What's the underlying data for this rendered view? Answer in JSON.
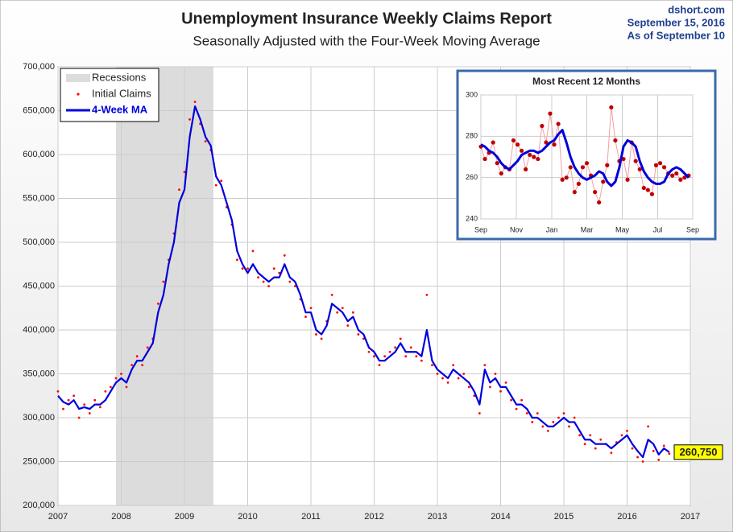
{
  "chart_data": [
    {
      "type": "line",
      "title": "Unemployment Insurance Weekly Claims Report",
      "subtitle": "Seasonally Adjusted with the Four-Week Moving Average",
      "source": [
        "dshort.com",
        "September 15, 2016",
        "As of September 10"
      ],
      "xlim": [
        2007,
        2017
      ],
      "xticks": [
        2007,
        2008,
        2009,
        2010,
        2011,
        2012,
        2013,
        2014,
        2015,
        2016,
        2017
      ],
      "ylim": [
        200000,
        700000
      ],
      "yticks": [
        {
          "value": 200000,
          "label": "200,000"
        },
        {
          "value": 250000,
          "label": "250,000"
        },
        {
          "value": 300000,
          "label": "300,000"
        },
        {
          "value": 350000,
          "label": "350,000"
        },
        {
          "value": 400000,
          "label": "400,000"
        },
        {
          "value": 450000,
          "label": "450,000"
        },
        {
          "value": 500000,
          "label": "500,000"
        },
        {
          "value": 550000,
          "label": "550,000"
        },
        {
          "value": 600000,
          "label": "600,000"
        },
        {
          "value": 650000,
          "label": "650,000"
        },
        {
          "value": 700000,
          "label": "700,000"
        }
      ],
      "grid": true,
      "shaded": {
        "name": "Recessions",
        "color": "#dcdcdc",
        "start": 2007.917,
        "end": 2009.458
      },
      "x": [
        2007,
        2007.083,
        2007.167,
        2007.25,
        2007.333,
        2007.417,
        2007.5,
        2007.583,
        2007.667,
        2007.75,
        2007.833,
        2007.917,
        2008,
        2008.083,
        2008.167,
        2008.25,
        2008.333,
        2008.417,
        2008.5,
        2008.583,
        2008.667,
        2008.75,
        2008.833,
        2008.917,
        2009,
        2009.083,
        2009.167,
        2009.25,
        2009.333,
        2009.417,
        2009.5,
        2009.583,
        2009.667,
        2009.75,
        2009.833,
        2009.917,
        2010,
        2010.083,
        2010.167,
        2010.25,
        2010.333,
        2010.417,
        2010.5,
        2010.583,
        2010.667,
        2010.75,
        2010.833,
        2010.917,
        2011,
        2011.083,
        2011.167,
        2011.25,
        2011.333,
        2011.417,
        2011.5,
        2011.583,
        2011.667,
        2011.75,
        2011.833,
        2011.917,
        2012,
        2012.083,
        2012.167,
        2012.25,
        2012.333,
        2012.417,
        2012.5,
        2012.583,
        2012.667,
        2012.75,
        2012.833,
        2012.917,
        2013,
        2013.083,
        2013.167,
        2013.25,
        2013.333,
        2013.417,
        2013.5,
        2013.583,
        2013.667,
        2013.75,
        2013.833,
        2013.917,
        2014,
        2014.083,
        2014.167,
        2014.25,
        2014.333,
        2014.417,
        2014.5,
        2014.583,
        2014.667,
        2014.75,
        2014.833,
        2014.917,
        2015,
        2015.083,
        2015.167,
        2015.25,
        2015.333,
        2015.417,
        2015.5,
        2015.583,
        2015.667,
        2015.75,
        2015.833,
        2015.917,
        2016,
        2016.083,
        2016.167,
        2016.25,
        2016.333,
        2016.417,
        2016.5,
        2016.583,
        2016.667
      ],
      "series": [
        {
          "name": "Initial Claims",
          "color": "#ff0000",
          "mark": "dot",
          "values": [
            330000,
            310000,
            320000,
            325000,
            300000,
            315000,
            305000,
            320000,
            312000,
            330000,
            335000,
            345000,
            350000,
            335000,
            360000,
            370000,
            360000,
            380000,
            390000,
            430000,
            455000,
            480000,
            510000,
            560000,
            580000,
            640000,
            660000,
            635000,
            615000,
            605000,
            565000,
            570000,
            540000,
            520000,
            480000,
            470000,
            470000,
            490000,
            460000,
            455000,
            450000,
            470000,
            465000,
            485000,
            455000,
            450000,
            435000,
            415000,
            425000,
            395000,
            390000,
            410000,
            440000,
            420000,
            425000,
            405000,
            420000,
            395000,
            390000,
            375000,
            370000,
            360000,
            370000,
            375000,
            380000,
            390000,
            370000,
            380000,
            370000,
            365000,
            440000,
            360000,
            350000,
            345000,
            340000,
            360000,
            345000,
            350000,
            335000,
            325000,
            305000,
            360000,
            335000,
            350000,
            330000,
            340000,
            320000,
            310000,
            320000,
            305000,
            295000,
            305000,
            290000,
            285000,
            295000,
            300000,
            305000,
            290000,
            300000,
            280000,
            270000,
            280000,
            265000,
            275000,
            270000,
            260000,
            272000,
            280000,
            285000,
            265000,
            255000,
            250000,
            290000,
            262000,
            252000,
            268000,
            259000
          ]
        },
        {
          "name": "4-Week MA",
          "color": "#0000dd",
          "mark": "line",
          "values": [
            325000,
            318000,
            315000,
            320000,
            310000,
            312000,
            310000,
            315000,
            315000,
            320000,
            330000,
            340000,
            345000,
            340000,
            355000,
            365000,
            365000,
            375000,
            385000,
            420000,
            440000,
            475000,
            500000,
            545000,
            560000,
            620000,
            655000,
            640000,
            620000,
            610000,
            575000,
            565000,
            545000,
            525000,
            490000,
            475000,
            465000,
            475000,
            465000,
            460000,
            455000,
            460000,
            460000,
            475000,
            460000,
            455000,
            440000,
            420000,
            420000,
            400000,
            395000,
            405000,
            430000,
            425000,
            420000,
            410000,
            415000,
            400000,
            395000,
            380000,
            375000,
            365000,
            365000,
            370000,
            375000,
            385000,
            375000,
            375000,
            375000,
            370000,
            400000,
            365000,
            355000,
            350000,
            345000,
            355000,
            350000,
            345000,
            340000,
            330000,
            315000,
            355000,
            340000,
            345000,
            335000,
            335000,
            325000,
            315000,
            315000,
            310000,
            300000,
            300000,
            295000,
            290000,
            290000,
            295000,
            300000,
            295000,
            295000,
            285000,
            275000,
            275000,
            270000,
            270000,
            270000,
            265000,
            270000,
            275000,
            280000,
            270000,
            262000,
            255000,
            275000,
            270000,
            258000,
            265000,
            260750
          ]
        }
      ],
      "annotation": {
        "value": 260750,
        "label": "260,750",
        "color": "#ffff00"
      }
    },
    {
      "type": "line",
      "title": "Most Recent 12 Months",
      "xlim": [
        0,
        52
      ],
      "xticks": [
        {
          "value": 0,
          "label": "Sep"
        },
        {
          "value": 8.7,
          "label": "Nov"
        },
        {
          "value": 17.4,
          "label": "Jan"
        },
        {
          "value": 26,
          "label": "Mar"
        },
        {
          "value": 34.7,
          "label": "May"
        },
        {
          "value": 43.4,
          "label": "Jul"
        },
        {
          "value": 52,
          "label": "Sep"
        }
      ],
      "ylim": [
        240,
        300
      ],
      "yticks": [
        240,
        260,
        280,
        300
      ],
      "grid": true,
      "x": [
        0,
        1,
        2,
        3,
        4,
        5,
        6,
        7,
        8,
        9,
        10,
        11,
        12,
        13,
        14,
        15,
        16,
        17,
        18,
        19,
        20,
        21,
        22,
        23,
        24,
        25,
        26,
        27,
        28,
        29,
        30,
        31,
        32,
        33,
        34,
        35,
        36,
        37,
        38,
        39,
        40,
        41,
        42,
        43,
        44,
        45,
        46,
        47,
        48,
        49,
        50,
        51
      ],
      "series": [
        {
          "name": "Initial Claims",
          "color": "#c00000",
          "mark": "dot-line",
          "values": [
            275,
            269,
            272,
            277,
            267,
            262,
            265,
            264,
            278,
            276,
            273,
            264,
            271,
            270,
            269,
            285,
            277,
            291,
            276,
            286,
            259,
            260,
            265,
            253,
            257,
            265,
            267,
            261,
            253,
            248,
            258,
            266,
            294,
            278,
            268,
            269,
            259,
            277,
            268,
            264,
            255,
            254,
            252,
            266,
            267,
            265,
            262,
            261,
            262,
            259,
            260,
            261
          ]
        },
        {
          "name": "4-Week MA",
          "color": "#0000dd",
          "mark": "line",
          "values": [
            276,
            275,
            273,
            272,
            270,
            267,
            265,
            264,
            266,
            268,
            271,
            272,
            273,
            273,
            272,
            273,
            275,
            277,
            278,
            281,
            283,
            277,
            270,
            265,
            262,
            260,
            259,
            260,
            261,
            263,
            262,
            258,
            256,
            258,
            265,
            275,
            278,
            277,
            275,
            268,
            263,
            260,
            258,
            257,
            257,
            258,
            262,
            264,
            265,
            264,
            262,
            260
          ]
        }
      ]
    }
  ]
}
